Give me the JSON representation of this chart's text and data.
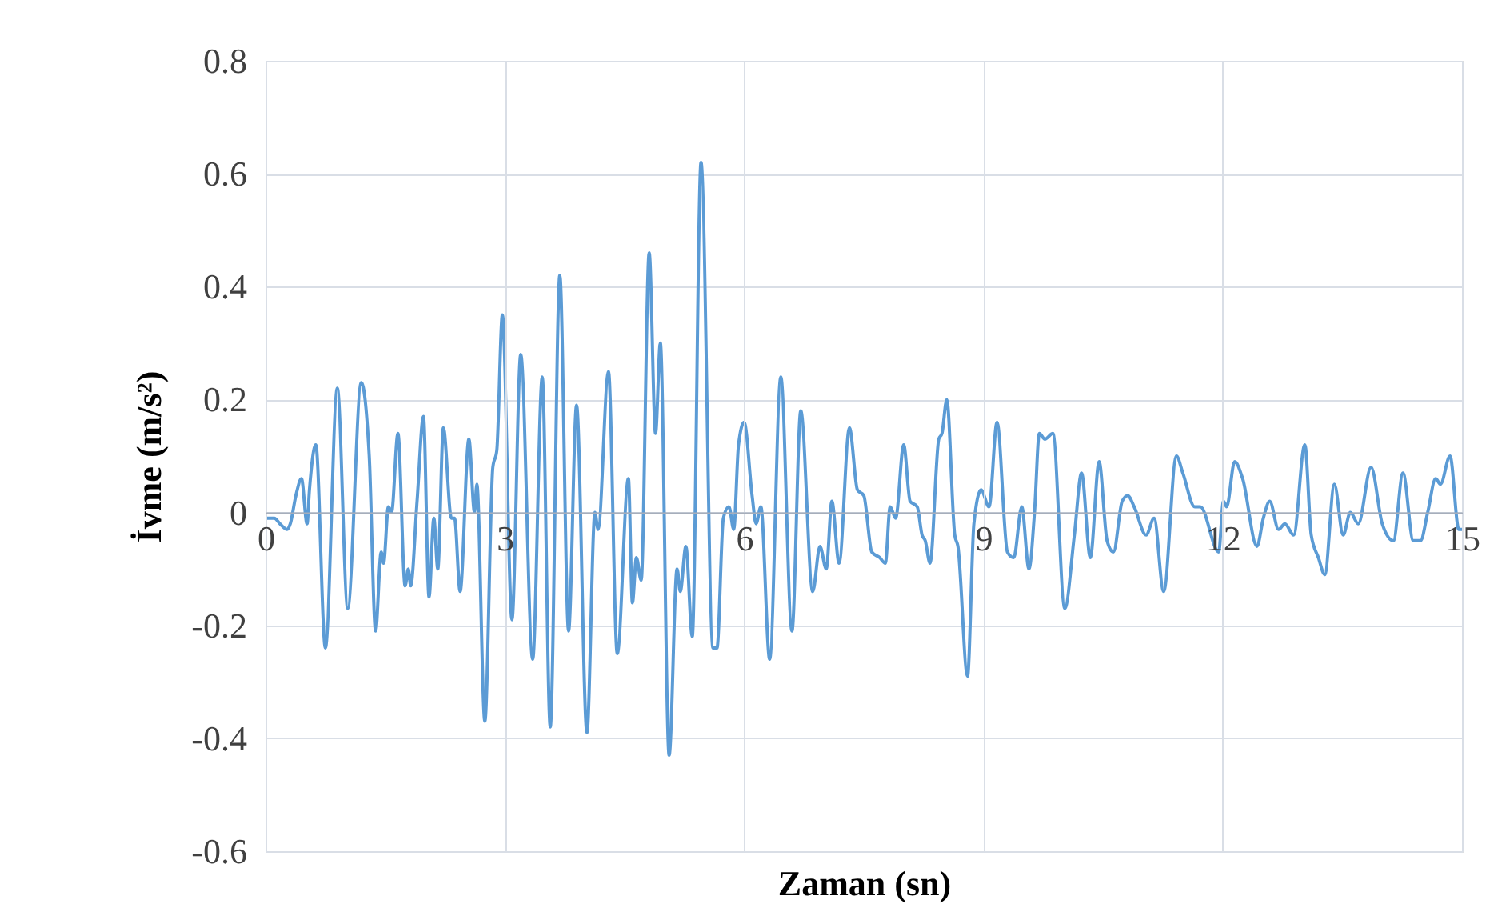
{
  "chart_data": {
    "type": "line",
    "xlabel": "Zaman (sn)",
    "ylabel": "İvme (m/s²)",
    "xlim": [
      0,
      15
    ],
    "xticks": [
      0,
      3,
      6,
      9,
      12,
      15
    ],
    "ylim": [
      -0.6,
      0.8
    ],
    "yticks": [
      -0.6,
      -0.4,
      -0.2,
      0,
      0.2,
      0.4,
      0.6,
      0.8
    ],
    "grid": true,
    "marker": "none",
    "line_style": "solid",
    "series": [
      {
        "color": "#5b9bd5",
        "x": [
          0.0,
          0.11,
          0.18,
          0.27,
          0.31,
          0.38,
          0.45,
          0.52,
          0.55,
          0.63,
          0.75,
          0.9,
          1.03,
          1.2,
          1.3,
          1.38,
          1.45,
          1.48,
          1.54,
          1.58,
          1.66,
          1.75,
          1.79,
          1.82,
          1.9,
          1.98,
          2.05,
          2.11,
          2.16,
          2.23,
          2.33,
          2.37,
          2.44,
          2.55,
          2.62,
          2.65,
          2.75,
          2.85,
          2.9,
          2.97,
          3.09,
          3.2,
          3.35,
          3.47,
          3.57,
          3.69,
          3.8,
          3.9,
          4.03,
          4.13,
          4.17,
          4.3,
          4.41,
          4.55,
          4.6,
          4.65,
          4.71,
          4.81,
          4.89,
          4.95,
          5.06,
          5.16,
          5.2,
          5.27,
          5.35,
          5.46,
          5.61,
          5.66,
          5.74,
          5.81,
          5.87,
          5.93,
          6.0,
          6.1,
          6.15,
          6.21,
          6.32,
          6.46,
          6.6,
          6.71,
          6.86,
          6.95,
          7.03,
          7.1,
          7.19,
          7.32,
          7.42,
          7.5,
          7.6,
          7.7,
          7.77,
          7.83,
          7.9,
          8.0,
          8.08,
          8.17,
          8.23,
          8.27,
          8.33,
          8.44,
          8.48,
          8.54,
          8.64,
          8.68,
          8.8,
          8.88,
          8.97,
          9.07,
          9.17,
          9.3,
          9.38,
          9.48,
          9.57,
          9.64,
          9.7,
          9.77,
          9.87,
          10.02,
          10.14,
          10.23,
          10.34,
          10.45,
          10.55,
          10.63,
          10.74,
          10.81,
          10.89,
          11.04,
          11.14,
          11.26,
          11.42,
          11.5,
          11.65,
          11.72,
          11.95,
          12.01,
          12.05,
          12.15,
          12.25,
          12.43,
          12.51,
          12.59,
          12.7,
          12.78,
          12.89,
          13.03,
          13.11,
          13.2,
          13.28,
          13.4,
          13.51,
          13.6,
          13.7,
          13.86,
          14.0,
          14.14,
          14.26,
          14.39,
          14.48,
          14.57,
          14.67,
          14.73,
          14.85,
          14.96,
          15.0
        ],
        "values": [
          -0.01,
          -0.01,
          -0.02,
          -0.03,
          -0.02,
          0.03,
          0.06,
          -0.02,
          0.04,
          0.12,
          -0.24,
          0.22,
          -0.17,
          0.23,
          0.1,
          -0.21,
          -0.07,
          -0.09,
          0.01,
          0.0,
          0.14,
          -0.13,
          -0.1,
          -0.13,
          0.02,
          0.17,
          -0.15,
          -0.01,
          -0.1,
          0.15,
          -0.01,
          -0.01,
          -0.14,
          0.13,
          0.0,
          0.05,
          -0.37,
          0.08,
          0.11,
          0.35,
          -0.19,
          0.28,
          -0.26,
          0.24,
          -0.38,
          0.42,
          -0.21,
          0.19,
          -0.39,
          0.0,
          -0.03,
          0.25,
          -0.25,
          0.06,
          -0.16,
          -0.08,
          -0.12,
          0.46,
          0.14,
          0.3,
          -0.43,
          -0.1,
          -0.14,
          -0.06,
          -0.22,
          0.62,
          -0.24,
          -0.24,
          -0.01,
          0.01,
          -0.03,
          0.12,
          0.16,
          0.03,
          -0.02,
          0.01,
          -0.26,
          0.24,
          -0.21,
          0.18,
          -0.14,
          -0.06,
          -0.1,
          0.02,
          -0.09,
          0.15,
          0.04,
          0.03,
          -0.07,
          -0.08,
          -0.09,
          0.01,
          -0.01,
          0.12,
          0.02,
          0.01,
          -0.04,
          -0.05,
          -0.09,
          0.13,
          0.14,
          0.2,
          -0.04,
          -0.06,
          -0.29,
          -0.02,
          0.04,
          0.01,
          0.16,
          -0.07,
          -0.08,
          0.01,
          -0.1,
          0.0,
          0.14,
          0.13,
          0.14,
          -0.17,
          -0.04,
          0.07,
          -0.08,
          0.09,
          -0.05,
          -0.07,
          0.02,
          0.03,
          0.01,
          -0.04,
          -0.01,
          -0.14,
          0.1,
          0.07,
          0.01,
          0.01,
          -0.07,
          0.02,
          0.01,
          0.09,
          0.06,
          -0.06,
          -0.01,
          0.02,
          -0.03,
          -0.02,
          -0.04,
          0.12,
          -0.04,
          -0.08,
          -0.11,
          0.05,
          -0.04,
          0.0,
          -0.02,
          0.08,
          -0.02,
          -0.05,
          0.07,
          -0.05,
          -0.05,
          0.0,
          0.06,
          0.05,
          0.1,
          -0.03,
          -0.03
        ]
      }
    ]
  }
}
